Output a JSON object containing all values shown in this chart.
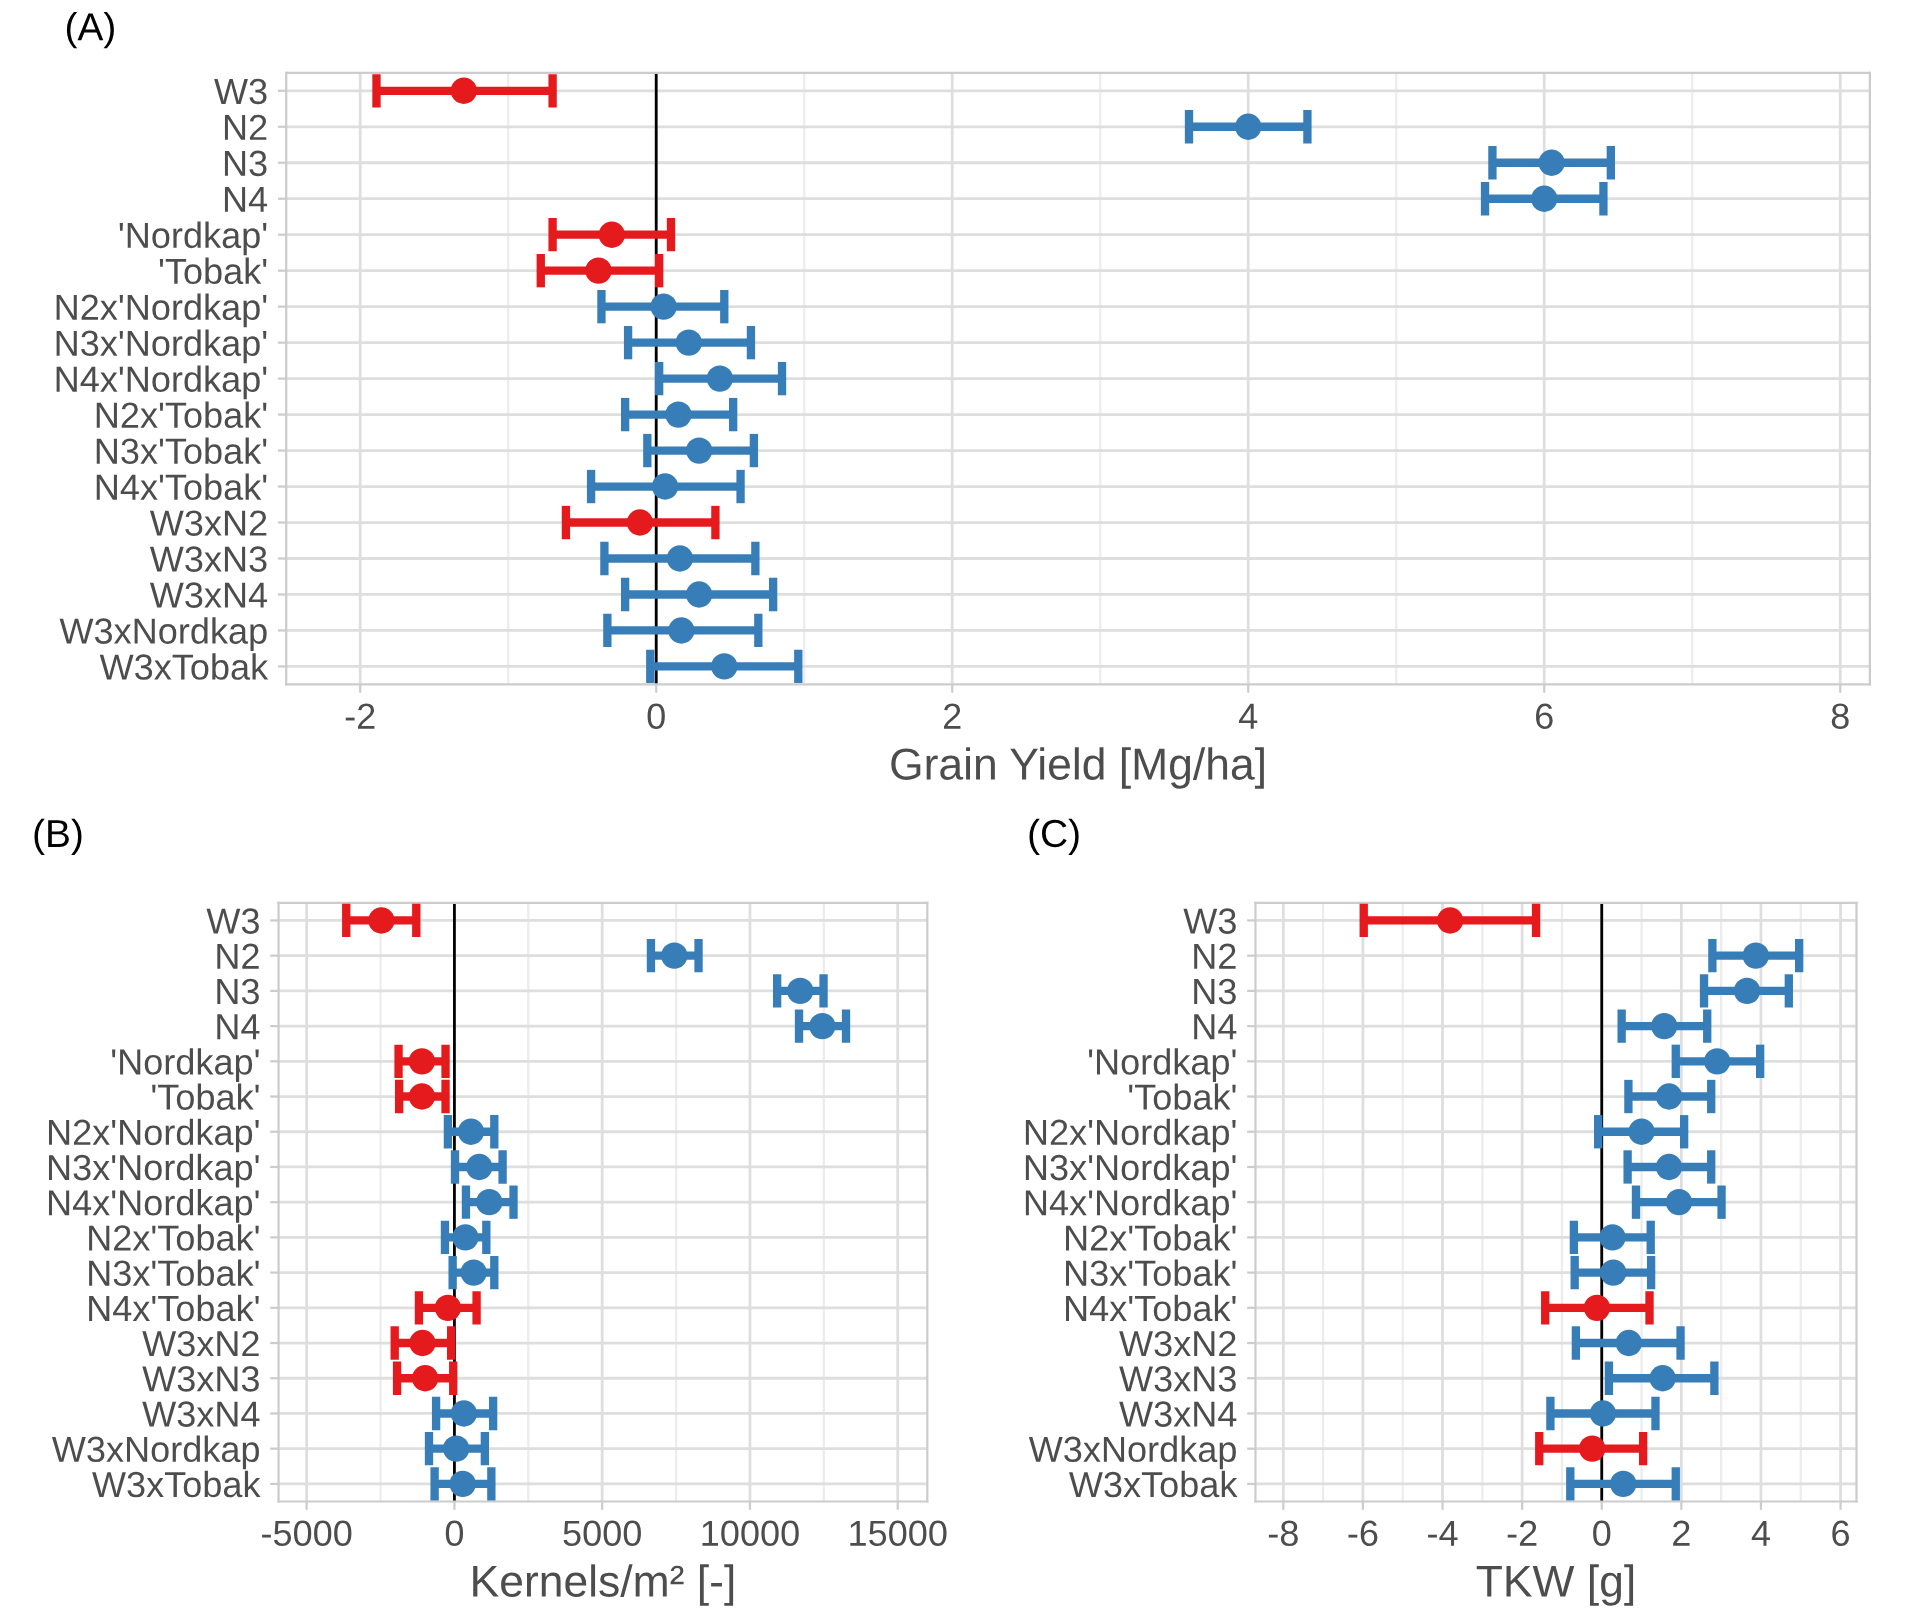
{
  "chart_data": [
    {
      "type": "scatter",
      "orientation": "horizontal",
      "title": "(A)",
      "xlabel": "Grain Yield [Mg/ha]",
      "marker": "circle",
      "grid": true,
      "categories": [
        "W3",
        "N2",
        "N3",
        "N4",
        "'Nordkap'",
        "'Tobak'",
        "N2x'Nordkap'",
        "N3x'Nordkap'",
        "N4x'Nordkap'",
        "N2x'Tobak'",
        "N3x'Tobak'",
        "N4x'Tobak'",
        "W3xN2",
        "W3xN3",
        "W3xN4",
        "W3xNordkap",
        "W3xTobak"
      ],
      "values": [
        -1.3,
        4.0,
        6.05,
        6.0,
        -0.3,
        -0.39,
        0.05,
        0.22,
        0.43,
        0.15,
        0.29,
        0.06,
        -0.11,
        0.16,
        0.29,
        0.17,
        0.46
      ],
      "errors": [
        [
          -1.89,
          -0.7
        ],
        [
          3.6,
          4.4
        ],
        [
          5.65,
          6.45
        ],
        [
          5.6,
          6.4
        ],
        [
          -0.7,
          0.1
        ],
        [
          -0.78,
          0.02
        ],
        [
          -0.37,
          0.46
        ],
        [
          -0.19,
          0.64
        ],
        [
          0.02,
          0.85
        ],
        [
          -0.21,
          0.52
        ],
        [
          -0.06,
          0.66
        ],
        [
          -0.44,
          0.57
        ],
        [
          -0.61,
          0.4
        ],
        [
          -0.35,
          0.67
        ],
        [
          -0.21,
          0.79
        ],
        [
          -0.33,
          0.69
        ],
        [
          -0.04,
          0.96
        ]
      ],
      "colors": [
        "#e41a1c",
        "#377eb8",
        "#377eb8",
        "#377eb8",
        "#e41a1c",
        "#e41a1c",
        "#377eb8",
        "#377eb8",
        "#377eb8",
        "#377eb8",
        "#377eb8",
        "#377eb8",
        "#e41a1c",
        "#377eb8",
        "#377eb8",
        "#377eb8",
        "#377eb8"
      ],
      "xlim": [
        -2.5,
        8.2
      ],
      "xticks": [
        -2,
        0,
        2,
        4,
        6,
        8
      ],
      "ref_lines": [
        {
          "axis": "x",
          "value": 0,
          "color": "#000000"
        }
      ]
    },
    {
      "type": "scatter",
      "orientation": "horizontal",
      "title": "(B)",
      "xlabel": "Kernels/m² [-]",
      "marker": "circle",
      "grid": true,
      "categories": [
        "W3",
        "N2",
        "N3",
        "N4",
        "'Nordkap'",
        "'Tobak'",
        "N2x'Nordkap'",
        "N3x'Nordkap'",
        "N4x'Nordkap'",
        "N2x'Tobak'",
        "N3x'Tobak'",
        "N4x'Tobak'",
        "W3xN2",
        "W3xN3",
        "W3xN4",
        "W3xNordkap",
        "W3xTobak"
      ],
      "values": [
        -2470,
        7440,
        11700,
        12450,
        -1100,
        -1100,
        560,
        840,
        1180,
        370,
        650,
        -220,
        -1080,
        -990,
        320,
        60,
        280
      ],
      "errors": [
        [
          -3660,
          -1290
        ],
        [
          6650,
          8260
        ],
        [
          10920,
          12490
        ],
        [
          11660,
          13250
        ],
        [
          -1890,
          -300
        ],
        [
          -1870,
          -300
        ],
        [
          -220,
          1350
        ],
        [
          20,
          1630
        ],
        [
          390,
          2000
        ],
        [
          -320,
          1080
        ],
        [
          -60,
          1350
        ],
        [
          -1200,
          750
        ],
        [
          -2020,
          -110
        ],
        [
          -1940,
          -40
        ],
        [
          -620,
          1310
        ],
        [
          -860,
          1030
        ],
        [
          -670,
          1250
        ]
      ],
      "colors": [
        "#e41a1c",
        "#377eb8",
        "#377eb8",
        "#377eb8",
        "#e41a1c",
        "#e41a1c",
        "#377eb8",
        "#377eb8",
        "#377eb8",
        "#377eb8",
        "#377eb8",
        "#e41a1c",
        "#e41a1c",
        "#e41a1c",
        "#377eb8",
        "#377eb8",
        "#377eb8"
      ],
      "xlim": [
        -5950,
        16000
      ],
      "xticks": [
        -5000,
        0,
        5000,
        10000,
        15000
      ],
      "ref_lines": [
        {
          "axis": "x",
          "value": 0,
          "color": "#000000"
        }
      ]
    },
    {
      "type": "scatter",
      "orientation": "horizontal",
      "title": "(C)",
      "xlabel": "TKW [g]",
      "marker": "circle",
      "grid": true,
      "categories": [
        "W3",
        "N2",
        "N3",
        "N4",
        "'Nordkap'",
        "'Tobak'",
        "N2x'Nordkap'",
        "N3x'Nordkap'",
        "N4x'Nordkap'",
        "N2x'Tobak'",
        "N3x'Tobak'",
        "N4x'Tobak'",
        "W3xN2",
        "W3xN3",
        "W3xN4",
        "W3xNordkap",
        "W3xTobak"
      ],
      "values": [
        -3.81,
        3.87,
        3.65,
        1.57,
        2.9,
        1.69,
        1.0,
        1.69,
        1.94,
        0.27,
        0.29,
        -0.12,
        0.68,
        1.53,
        0.03,
        -0.24,
        0.54
      ],
      "errors": [
        [
          -5.98,
          -1.65
        ],
        [
          2.78,
          4.96
        ],
        [
          2.57,
          4.7
        ],
        [
          0.5,
          2.65
        ],
        [
          1.86,
          3.98
        ],
        [
          0.67,
          2.75
        ],
        [
          -0.09,
          2.07
        ],
        [
          0.65,
          2.75
        ],
        [
          0.86,
          3.01
        ],
        [
          -0.7,
          1.23
        ],
        [
          -0.68,
          1.24
        ],
        [
          -1.42,
          1.2
        ],
        [
          -0.65,
          1.98
        ],
        [
          0.18,
          2.83
        ],
        [
          -1.29,
          1.35
        ],
        [
          -1.57,
          1.04
        ],
        [
          -0.79,
          1.86
        ]
      ],
      "colors": [
        "#e41a1c",
        "#377eb8",
        "#377eb8",
        "#377eb8",
        "#377eb8",
        "#377eb8",
        "#377eb8",
        "#377eb8",
        "#377eb8",
        "#377eb8",
        "#377eb8",
        "#e41a1c",
        "#377eb8",
        "#377eb8",
        "#377eb8",
        "#e41a1c",
        "#377eb8"
      ],
      "xlim": [
        -8.7,
        6.4
      ],
      "xticks": [
        -8,
        -6,
        -4,
        -2,
        0,
        2,
        4,
        6
      ],
      "ref_lines": [
        {
          "axis": "x",
          "value": 0,
          "color": "#000000"
        }
      ]
    }
  ]
}
